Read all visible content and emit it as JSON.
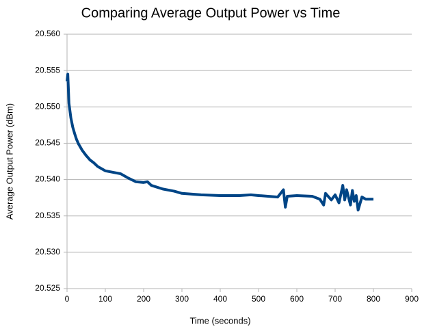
{
  "chart_data": {
    "type": "line",
    "title": "Comparing Average Output Power vs Time",
    "xlabel": "Time (seconds)",
    "ylabel": "Average Output Power (dBm)",
    "x": [
      0,
      2,
      5,
      10,
      15,
      20,
      25,
      30,
      40,
      50,
      60,
      70,
      80,
      90,
      100,
      120,
      140,
      150,
      160,
      180,
      200,
      210,
      220,
      250,
      280,
      300,
      350,
      400,
      450,
      480,
      500,
      550,
      565,
      570,
      575,
      600,
      640,
      660,
      670,
      675,
      690,
      700,
      710,
      720,
      725,
      730,
      740,
      745,
      750,
      755,
      760,
      770,
      780,
      800
    ],
    "series": [
      {
        "name": "Average Output Power",
        "color": "#004586",
        "values": [
          20.5535,
          20.5545,
          20.5505,
          20.5485,
          20.5472,
          20.5463,
          20.5455,
          20.5449,
          20.544,
          20.5433,
          20.5427,
          20.5423,
          20.5418,
          20.5415,
          20.5412,
          20.541,
          20.5408,
          20.5405,
          20.5402,
          20.5397,
          20.5396,
          20.5397,
          20.5392,
          20.5387,
          20.5384,
          20.5381,
          20.5379,
          20.5378,
          20.5378,
          20.5379,
          20.5378,
          20.5376,
          20.5386,
          20.5362,
          20.5377,
          20.5378,
          20.5377,
          20.5373,
          20.5365,
          20.5381,
          20.5372,
          20.5379,
          20.5368,
          20.5392,
          20.5372,
          20.5386,
          20.5365,
          20.5385,
          20.537,
          20.5378,
          20.5358,
          20.5376,
          20.5373,
          20.5373
        ]
      }
    ],
    "xlim": [
      0,
      900
    ],
    "xticks": [
      0,
      100,
      200,
      300,
      400,
      500,
      600,
      700,
      800,
      900
    ],
    "ylim": [
      20.525,
      20.56
    ],
    "yticks": [
      20.525,
      {
        "value": 20.53,
        "label": "20.530"
      },
      20.535,
      {
        "value": 20.54,
        "label": "20.540"
      },
      20.545,
      {
        "value": 20.55,
        "label": "20.550"
      },
      20.555,
      {
        "value": 20.56,
        "label": "20.560"
      }
    ],
    "grid": true
  }
}
